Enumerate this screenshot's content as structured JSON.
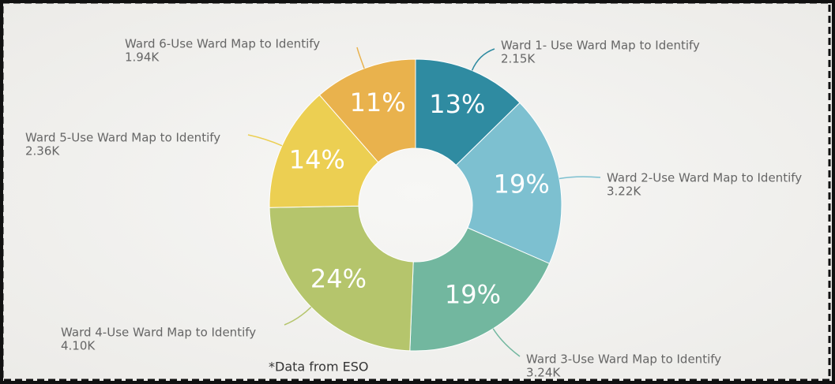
{
  "chart_data": {
    "type": "donut",
    "categories": [
      "Ward 1- Use Ward Map to Identify",
      "Ward 2-Use Ward Map to Identify",
      "Ward 3-Use Ward Map to Identify",
      "Ward 4-Use Ward Map to Identify",
      "Ward 5-Use Ward Map to Identify",
      "Ward 6-Use Ward Map to Identify"
    ],
    "values": [
      2150,
      3220,
      3240,
      4100,
      2360,
      1940
    ],
    "value_labels": [
      "2.15K",
      "3.22K",
      "3.24K",
      "4.10K",
      "2.36K",
      "1.94K"
    ],
    "percent_labels": [
      "13%",
      "19%",
      "19%",
      "24%",
      "14%",
      "11%"
    ],
    "colors": [
      "#2f8ba1",
      "#7dc0d0",
      "#72b79f",
      "#b5c56c",
      "#eccf52",
      "#e9b24d"
    ],
    "annotation": "*Data from ESO"
  }
}
